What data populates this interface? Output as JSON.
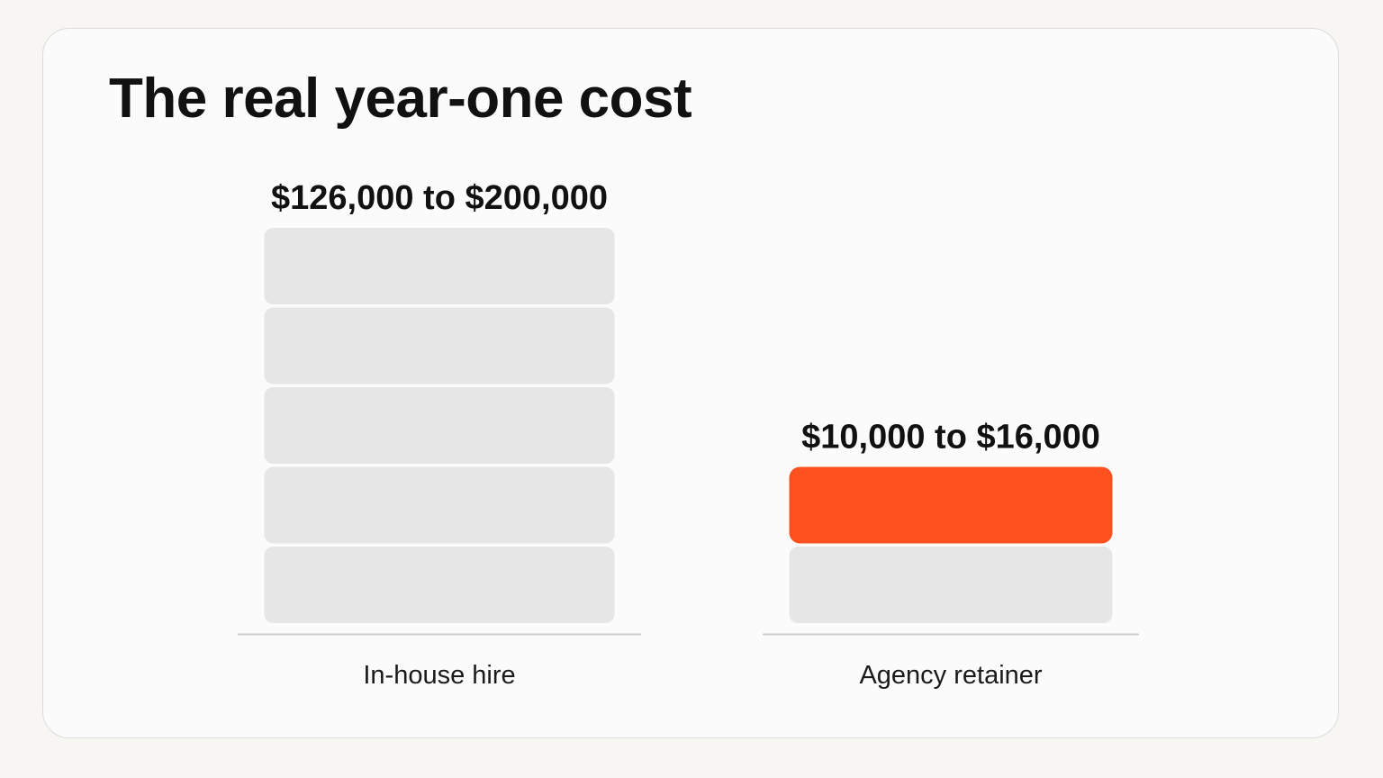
{
  "chart_data": {
    "type": "bar",
    "title": "The real year-one cost",
    "categories": [
      "In-house hire",
      "Agency retainer"
    ],
    "value_labels": [
      "$126,000 to $200,000",
      "$10,000 to $16,000"
    ],
    "ranges": [
      [
        126000,
        200000
      ],
      [
        10000,
        16000
      ]
    ],
    "segments_total": [
      5,
      2
    ],
    "segments_highlighted": [
      0,
      1
    ],
    "xlabel": "",
    "ylabel": "",
    "grid": false,
    "legend": "none"
  },
  "colors": {
    "background": "#f7f6f3",
    "card": "#fbfbfb",
    "segment": "#e6e6e6",
    "highlight": "#ff5020",
    "baseline": "#cfcfcf",
    "text": "#111111"
  }
}
